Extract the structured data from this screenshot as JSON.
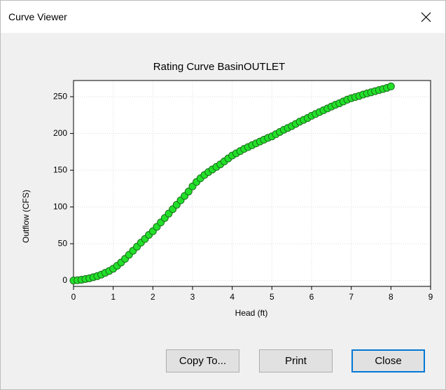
{
  "window": {
    "title": "Curve Viewer",
    "buttons": [
      "Copy To...",
      "Print",
      "Close"
    ]
  },
  "chart_data": {
    "type": "scatter",
    "title": "Rating Curve BasinOUTLET",
    "xlabel": "Head (ft)",
    "ylabel": "Outflow (CFS)",
    "x": [
      0,
      0.1,
      0.2,
      0.3,
      0.4,
      0.5,
      0.6,
      0.7,
      0.8,
      0.9,
      1,
      1.1,
      1.2,
      1.3,
      1.4,
      1.5,
      1.6,
      1.7,
      1.8,
      1.9,
      2,
      2.1,
      2.2,
      2.3,
      2.4,
      2.5,
      2.6,
      2.7,
      2.8,
      2.9,
      3,
      3.1,
      3.2,
      3.3,
      3.4,
      3.5,
      3.6,
      3.7,
      3.8,
      3.9,
      4,
      4.1,
      4.2,
      4.3,
      4.4,
      4.5,
      4.6,
      4.7,
      4.8,
      4.9,
      5,
      5.1,
      5.2,
      5.3,
      5.4,
      5.5,
      5.6,
      5.7,
      5.8,
      5.9,
      6,
      6.1,
      6.2,
      6.3,
      6.4,
      6.5,
      6.6,
      6.7,
      6.8,
      6.9,
      7,
      7.1,
      7.2,
      7.3,
      7.4,
      7.5,
      7.6,
      7.7,
      7.8,
      7.9,
      8
    ],
    "values": [
      0,
      0.3,
      1,
      2,
      3,
      4.5,
      6,
      8,
      10.5,
      13,
      16,
      20,
      24.5,
      29.5,
      35,
      40.5,
      46,
      51.5,
      56.5,
      62,
      67,
      73,
      79,
      85,
      91,
      97,
      103,
      109,
      115,
      121,
      128,
      134,
      139,
      143.5,
      147.5,
      151,
      154.5,
      158,
      162,
      166,
      170,
      173,
      176,
      179,
      181.5,
      184,
      186.5,
      189,
      191.5,
      194,
      196,
      199,
      202,
      205,
      207.5,
      210,
      213,
      216,
      218.5,
      221,
      224,
      226.5,
      229,
      231.5,
      234,
      236.5,
      239,
      241,
      243.5,
      246,
      248,
      249.5,
      251,
      253,
      254.5,
      256,
      257.5,
      259,
      260.5,
      262,
      264
    ],
    "color": "#22e02a",
    "xlim": [
      0,
      9
    ],
    "ylim": [
      -8,
      272
    ],
    "xticks": [
      0,
      1,
      2,
      3,
      4,
      5,
      6,
      7,
      8,
      9
    ],
    "yticks": [
      0,
      50,
      100,
      150,
      200,
      250
    ],
    "grid": true
  }
}
